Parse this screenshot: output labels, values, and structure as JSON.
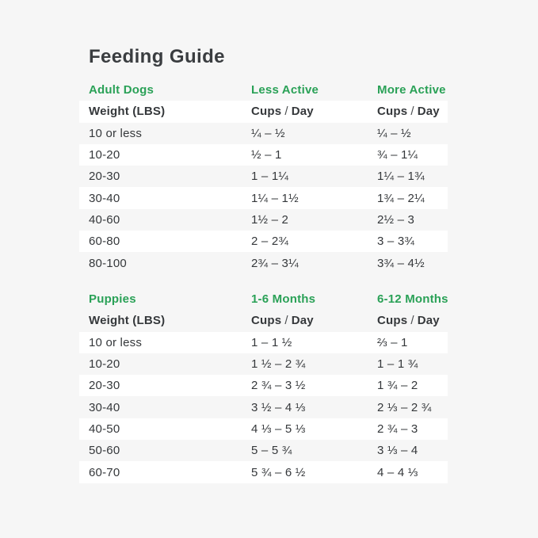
{
  "title": "Feeding Guide",
  "colors": {
    "background": "#f6f6f6",
    "stripe_white": "#ffffff",
    "accent_green": "#2aa157",
    "text_dark": "#35383b"
  },
  "labels": {
    "weight_header": "Weight (LBS)",
    "cups": "Cups",
    "slash": "/",
    "day": "Day"
  },
  "adult": {
    "section_label": "Adult Dogs",
    "col2_label": "Less Active",
    "col3_label": "More Active",
    "rows": [
      {
        "weight": "10 or less",
        "less": "¼ – ½",
        "more": "¼ – ½"
      },
      {
        "weight": "10-20",
        "less": "½ – 1",
        "more": "¾ – 1¼"
      },
      {
        "weight": "20-30",
        "less": "1 – 1¼",
        "more": "1¼ – 1¾"
      },
      {
        "weight": "30-40",
        "less": "1¼ – 1½",
        "more": "1¾ – 2¼"
      },
      {
        "weight": "40-60",
        "less": "1½ – 2",
        "more": "2½ – 3"
      },
      {
        "weight": "60-80",
        "less": "2 – 2¾",
        "more": "3 – 3¾"
      },
      {
        "weight": "80-100",
        "less": "2¾ – 3¼",
        "more": "3¾ – 4½"
      }
    ]
  },
  "puppies": {
    "section_label": "Puppies",
    "col2_label": "1-6 Months",
    "col3_label": "6-12 Months",
    "rows": [
      {
        "weight": "10 or less",
        "m16": "1 – 1 ½",
        "m612": "⅔ – 1"
      },
      {
        "weight": "10-20",
        "m16": "1 ½ – 2 ¾",
        "m612": "1 – 1 ¾"
      },
      {
        "weight": "20-30",
        "m16": "2 ¾ – 3 ½",
        "m612": "1 ¾ – 2"
      },
      {
        "weight": "30-40",
        "m16": "3 ½ – 4 ⅓",
        "m612": "2 ⅓ – 2 ¾"
      },
      {
        "weight": "40-50",
        "m16": "4 ⅓ – 5 ⅓",
        "m612": "2 ¾ – 3"
      },
      {
        "weight": "50-60",
        "m16": "5 – 5 ¾",
        "m612": "3 ⅓ – 4"
      },
      {
        "weight": "60-70",
        "m16": "5 ¾ – 6 ½",
        "m612": "4 – 4 ⅓"
      }
    ]
  }
}
